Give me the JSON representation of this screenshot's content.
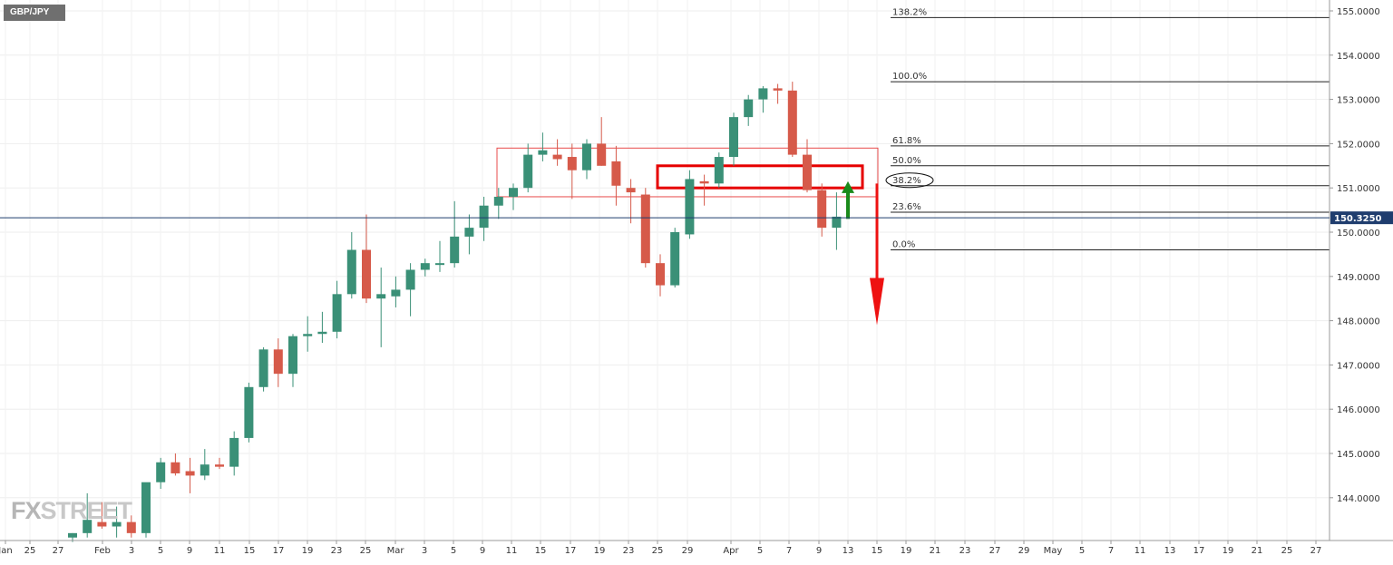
{
  "symbol": "GBP/JPY",
  "logo": {
    "fx": "FX",
    "street": "STREET"
  },
  "price_label": "150.3250",
  "chart_data": {
    "type": "candlestick",
    "title": "GBP/JPY",
    "y_ticks": [
      "144.0000",
      "145.0000",
      "146.0000",
      "147.0000",
      "148.0000",
      "149.0000",
      "150.0000",
      "151.0000",
      "152.0000",
      "153.0000",
      "154.0000",
      "155.0000"
    ],
    "ylim": [
      143.0,
      155.2
    ],
    "current_price": 150.325,
    "x_ticks": [
      "Jan",
      "25",
      "27",
      "Feb",
      "3",
      "5",
      "9",
      "11",
      "15",
      "17",
      "19",
      "23",
      "25",
      "Mar",
      "3",
      "5",
      "9",
      "11",
      "15",
      "17",
      "19",
      "23",
      "25",
      "29",
      "Apr",
      "5",
      "7",
      "9",
      "13",
      "15",
      "19",
      "21",
      "23",
      "27",
      "29",
      "May",
      "5",
      "7",
      "11",
      "13",
      "17",
      "19",
      "21",
      "25",
      "27"
    ],
    "candles": [
      {
        "o": 143.1,
        "h": 143.2,
        "l": 143.0,
        "c": 143.2
      },
      {
        "o": 143.2,
        "h": 144.1,
        "l": 143.1,
        "c": 143.5
      },
      {
        "o": 143.45,
        "h": 143.9,
        "l": 143.3,
        "c": 143.35
      },
      {
        "o": 143.35,
        "h": 143.8,
        "l": 143.1,
        "c": 143.45
      },
      {
        "o": 143.45,
        "h": 143.6,
        "l": 143.1,
        "c": 143.2
      },
      {
        "o": 143.2,
        "h": 144.3,
        "l": 143.1,
        "c": 144.35
      },
      {
        "o": 144.35,
        "h": 144.9,
        "l": 144.2,
        "c": 144.8
      },
      {
        "o": 144.8,
        "h": 145.0,
        "l": 144.5,
        "c": 144.55
      },
      {
        "o": 144.6,
        "h": 144.9,
        "l": 144.1,
        "c": 144.5
      },
      {
        "o": 144.5,
        "h": 145.1,
        "l": 144.4,
        "c": 144.75
      },
      {
        "o": 144.75,
        "h": 144.9,
        "l": 144.65,
        "c": 144.7
      },
      {
        "o": 144.7,
        "h": 145.5,
        "l": 144.5,
        "c": 145.35
      },
      {
        "o": 145.35,
        "h": 146.6,
        "l": 145.25,
        "c": 146.5
      },
      {
        "o": 146.5,
        "h": 147.4,
        "l": 146.4,
        "c": 147.35
      },
      {
        "o": 147.35,
        "h": 147.6,
        "l": 146.5,
        "c": 146.8
      },
      {
        "o": 146.8,
        "h": 147.7,
        "l": 146.5,
        "c": 147.65
      },
      {
        "o": 147.65,
        "h": 148.1,
        "l": 147.3,
        "c": 147.7
      },
      {
        "o": 147.7,
        "h": 148.2,
        "l": 147.5,
        "c": 147.75
      },
      {
        "o": 147.75,
        "h": 148.9,
        "l": 147.6,
        "c": 148.6
      },
      {
        "o": 148.6,
        "h": 150.0,
        "l": 148.5,
        "c": 149.6
      },
      {
        "o": 149.6,
        "h": 150.4,
        "l": 148.4,
        "c": 148.5
      },
      {
        "o": 148.5,
        "h": 149.2,
        "l": 147.4,
        "c": 148.6
      },
      {
        "o": 148.55,
        "h": 149.0,
        "l": 148.3,
        "c": 148.7
      },
      {
        "o": 148.7,
        "h": 149.3,
        "l": 148.1,
        "c": 149.15
      },
      {
        "o": 149.15,
        "h": 149.4,
        "l": 149.0,
        "c": 149.3
      },
      {
        "o": 149.3,
        "h": 149.8,
        "l": 149.1,
        "c": 149.3
      },
      {
        "o": 149.3,
        "h": 150.7,
        "l": 149.2,
        "c": 149.9
      },
      {
        "o": 149.9,
        "h": 150.4,
        "l": 149.5,
        "c": 150.1
      },
      {
        "o": 150.1,
        "h": 150.8,
        "l": 149.8,
        "c": 150.6
      },
      {
        "o": 150.6,
        "h": 151.0,
        "l": 150.3,
        "c": 150.8
      },
      {
        "o": 150.8,
        "h": 151.1,
        "l": 150.5,
        "c": 151.0
      },
      {
        "o": 151.0,
        "h": 152.0,
        "l": 150.9,
        "c": 151.75
      },
      {
        "o": 151.75,
        "h": 152.25,
        "l": 151.6,
        "c": 151.85
      },
      {
        "o": 151.75,
        "h": 152.1,
        "l": 151.5,
        "c": 151.65
      },
      {
        "o": 151.7,
        "h": 152.0,
        "l": 150.75,
        "c": 151.4
      },
      {
        "o": 151.4,
        "h": 152.1,
        "l": 151.2,
        "c": 152.0
      },
      {
        "o": 152.0,
        "h": 152.6,
        "l": 151.5,
        "c": 151.5
      },
      {
        "o": 151.6,
        "h": 151.95,
        "l": 150.6,
        "c": 151.05
      },
      {
        "o": 151.0,
        "h": 151.2,
        "l": 150.2,
        "c": 150.9
      },
      {
        "o": 150.85,
        "h": 151.0,
        "l": 149.2,
        "c": 149.3
      },
      {
        "o": 149.3,
        "h": 149.5,
        "l": 148.55,
        "c": 148.8
      },
      {
        "o": 148.8,
        "h": 150.1,
        "l": 148.75,
        "c": 150.0
      },
      {
        "o": 149.95,
        "h": 151.4,
        "l": 149.85,
        "c": 151.2
      },
      {
        "o": 151.15,
        "h": 151.3,
        "l": 150.6,
        "c": 151.1
      },
      {
        "o": 151.1,
        "h": 151.8,
        "l": 151.0,
        "c": 151.7
      },
      {
        "o": 151.7,
        "h": 152.7,
        "l": 151.5,
        "c": 152.6
      },
      {
        "o": 152.6,
        "h": 153.1,
        "l": 152.4,
        "c": 153.0
      },
      {
        "o": 153.0,
        "h": 153.3,
        "l": 152.7,
        "c": 153.25
      },
      {
        "o": 153.25,
        "h": 153.35,
        "l": 152.9,
        "c": 153.2
      },
      {
        "o": 153.2,
        "h": 153.4,
        "l": 151.7,
        "c": 151.75
      },
      {
        "o": 151.75,
        "h": 152.1,
        "l": 150.9,
        "c": 150.95
      },
      {
        "o": 150.95,
        "h": 151.1,
        "l": 149.9,
        "c": 150.1
      },
      {
        "o": 150.1,
        "h": 150.9,
        "l": 149.6,
        "c": 150.35
      }
    ],
    "fib_levels": [
      {
        "label": "138.2%",
        "price": 154.85
      },
      {
        "label": "100.0%",
        "price": 153.4
      },
      {
        "label": "61.8%",
        "price": 151.95
      },
      {
        "label": "50.0%",
        "price": 151.5
      },
      {
        "label": "38.2%",
        "price": 151.05
      },
      {
        "label": "23.6%",
        "price": 150.45
      },
      {
        "label": "0.0%",
        "price": 149.6
      }
    ],
    "zones": [
      {
        "name": "range-box",
        "top": 151.9,
        "bottom": 150.8,
        "from_index": 30,
        "to_index": 55,
        "color": "#e84b4b"
      },
      {
        "name": "resistance-box",
        "top": 151.5,
        "bottom": 151.0,
        "from_index": 41,
        "to_index": 54,
        "color": "#e60000"
      }
    ],
    "arrows": [
      {
        "name": "up-arrow",
        "index": 55,
        "from": 150.3,
        "to": 151.15,
        "color": "#1a8a1a"
      },
      {
        "name": "down-arrow",
        "index": 57,
        "from": 151.1,
        "to": 147.9,
        "color": "#ee1111"
      }
    ],
    "colors": {
      "up": "#3a9077",
      "down": "#d65a4a",
      "price_line": "#1f3d6e",
      "price_label_bg": "#1f3d6e"
    }
  }
}
